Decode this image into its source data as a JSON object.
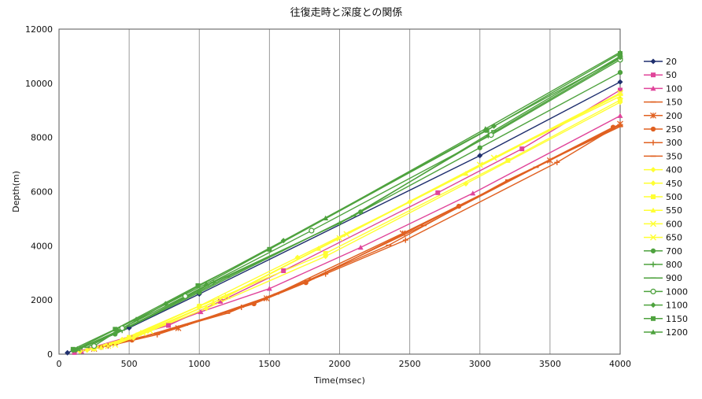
{
  "chart_data": {
    "type": "line",
    "title": "往復走時と深度との関係",
    "xlabel": "Time(msec)",
    "ylabel": "Depth(m)",
    "xlim": [
      0,
      4000
    ],
    "ylim": [
      0,
      12000
    ],
    "xticks": [
      0,
      500,
      1000,
      1500,
      2000,
      2500,
      3000,
      3500,
      4000
    ],
    "yticks": [
      0,
      2000,
      4000,
      6000,
      8000,
      10000,
      12000
    ],
    "grid": "vertical",
    "legend": "right",
    "series": [
      {
        "name": "20",
        "color": "#1f2f6e",
        "marker": "diamond",
        "points": [
          [
            60,
            50
          ],
          [
            500,
            970
          ],
          [
            1000,
            2220
          ],
          [
            3000,
            7330
          ],
          [
            4000,
            10050
          ]
        ]
      },
      {
        "name": "50",
        "color": "#e0449a",
        "marker": "square",
        "points": [
          [
            110,
            60
          ],
          [
            780,
            1060
          ],
          [
            1150,
            1950
          ],
          [
            1600,
            3080
          ],
          [
            2700,
            5960
          ],
          [
            3300,
            7580
          ],
          [
            4000,
            9750
          ]
        ]
      },
      {
        "name": "100",
        "color": "#e0449a",
        "marker": "triangle",
        "points": [
          [
            160,
            100
          ],
          [
            520,
            610
          ],
          [
            1010,
            1560
          ],
          [
            1500,
            2420
          ],
          [
            2150,
            3940
          ],
          [
            2950,
            5940
          ],
          [
            4000,
            8800
          ]
        ]
      },
      {
        "name": "150",
        "color": "#e06020",
        "marker": "dash",
        "points": [
          [
            200,
            150
          ],
          [
            700,
            780
          ],
          [
            1200,
            1510
          ],
          [
            1800,
            2780
          ],
          [
            2600,
            4750
          ],
          [
            3400,
            6900
          ],
          [
            4000,
            8450
          ]
        ]
      },
      {
        "name": "200",
        "color": "#e06020",
        "marker": "star",
        "points": [
          [
            250,
            200
          ],
          [
            850,
            960
          ],
          [
            1480,
            2060
          ],
          [
            2450,
            4460
          ],
          [
            3500,
            7150
          ],
          [
            4000,
            8500
          ]
        ]
      },
      {
        "name": "250",
        "color": "#e06020",
        "marker": "circle",
        "points": [
          [
            300,
            250
          ],
          [
            520,
            520
          ],
          [
            1390,
            1860
          ],
          [
            1760,
            2640
          ],
          [
            2850,
            5460
          ],
          [
            3950,
            8380
          ]
        ]
      },
      {
        "name": "300",
        "color": "#e06020",
        "marker": "plus",
        "points": [
          [
            350,
            300
          ],
          [
            700,
            720
          ],
          [
            1300,
            1730
          ],
          [
            1900,
            2960
          ],
          [
            2470,
            4210
          ],
          [
            3550,
            7080
          ],
          [
            4000,
            8480
          ]
        ]
      },
      {
        "name": "350",
        "color": "#e06020",
        "marker": "dash",
        "points": [
          [
            400,
            350
          ],
          [
            900,
            1070
          ],
          [
            1550,
            2220
          ],
          [
            2350,
            4020
          ],
          [
            3200,
            6430
          ],
          [
            4000,
            8400
          ]
        ]
      },
      {
        "name": "400",
        "color": "#ffff33",
        "marker": "diamond",
        "points": [
          [
            150,
            100
          ],
          [
            450,
            540
          ],
          [
            1000,
            1780
          ],
          [
            1700,
            3570
          ],
          [
            2500,
            5620
          ],
          [
            4000,
            9600
          ]
        ]
      },
      {
        "name": "450",
        "color": "#ffff33",
        "marker": "diamond",
        "points": [
          [
            200,
            150
          ],
          [
            530,
            600
          ],
          [
            1050,
            1690
          ],
          [
            1900,
            3610
          ],
          [
            2900,
            6290
          ],
          [
            4000,
            9300
          ]
        ]
      },
      {
        "name": "500",
        "color": "#ffff33",
        "marker": "square",
        "points": [
          [
            250,
            200
          ],
          [
            500,
            620
          ],
          [
            1000,
            1770
          ],
          [
            1900,
            3720
          ],
          [
            3200,
            7150
          ],
          [
            4000,
            9380
          ]
        ]
      },
      {
        "name": "550",
        "color": "#ffff33",
        "marker": "triangle",
        "points": [
          [
            300,
            250
          ],
          [
            550,
            710
          ],
          [
            1100,
            1900
          ],
          [
            1850,
            3900
          ],
          [
            2900,
            6670
          ],
          [
            4000,
            9620
          ]
        ]
      },
      {
        "name": "600",
        "color": "#ffff33",
        "marker": "x",
        "points": [
          [
            350,
            300
          ],
          [
            600,
            780
          ],
          [
            1150,
            2030
          ],
          [
            2000,
            4280
          ],
          [
            3100,
            7250
          ],
          [
            4000,
            9640
          ]
        ]
      },
      {
        "name": "650",
        "color": "#ffff33",
        "marker": "x",
        "points": [
          [
            400,
            350
          ],
          [
            650,
            860
          ],
          [
            1200,
            2140
          ],
          [
            2050,
            4430
          ],
          [
            3000,
            6990
          ],
          [
            4000,
            9520
          ]
        ]
      },
      {
        "name": "700",
        "color": "#4ea23e",
        "marker": "circle",
        "points": [
          [
            100,
            150
          ],
          [
            400,
            740
          ],
          [
            1000,
            2280
          ],
          [
            2150,
            5250
          ],
          [
            3000,
            7620
          ],
          [
            4000,
            10400
          ]
        ]
      },
      {
        "name": "800",
        "color": "#4ea23e",
        "marker": "plus",
        "points": [
          [
            150,
            200
          ],
          [
            450,
            880
          ],
          [
            1100,
            2650
          ],
          [
            2000,
            4830
          ],
          [
            3060,
            8070
          ],
          [
            4000,
            10930
          ]
        ]
      },
      {
        "name": "900",
        "color": "#4ea23e",
        "marker": "dash",
        "points": [
          [
            200,
            250
          ],
          [
            500,
            1030
          ],
          [
            1200,
            2850
          ],
          [
            2100,
            5100
          ],
          [
            3100,
            8250
          ],
          [
            4000,
            11000
          ]
        ]
      },
      {
        "name": "1000",
        "color": "#4ea23e",
        "marker": "circle-open",
        "points": [
          [
            250,
            300
          ],
          [
            450,
            960
          ],
          [
            900,
            2140
          ],
          [
            1800,
            4560
          ],
          [
            3080,
            8090
          ],
          [
            4000,
            10870
          ]
        ]
      },
      {
        "name": "1100",
        "color": "#4ea23e",
        "marker": "diamond",
        "points": [
          [
            120,
            150
          ],
          [
            420,
            860
          ],
          [
            760,
            1860
          ],
          [
            1600,
            4190
          ],
          [
            3100,
            8420
          ],
          [
            4000,
            10950
          ]
        ]
      },
      {
        "name": "1150",
        "color": "#4ea23e",
        "marker": "square",
        "points": [
          [
            100,
            180
          ],
          [
            400,
            920
          ],
          [
            990,
            2530
          ],
          [
            1500,
            3870
          ],
          [
            3050,
            8260
          ],
          [
            4000,
            11100
          ]
        ]
      },
      {
        "name": "1200",
        "color": "#4ea23e",
        "marker": "triangle",
        "points": [
          [
            130,
            200
          ],
          [
            550,
            1290
          ],
          [
            1050,
            2600
          ],
          [
            1900,
            5020
          ],
          [
            3040,
            8320
          ],
          [
            4000,
            11150
          ]
        ]
      }
    ]
  }
}
